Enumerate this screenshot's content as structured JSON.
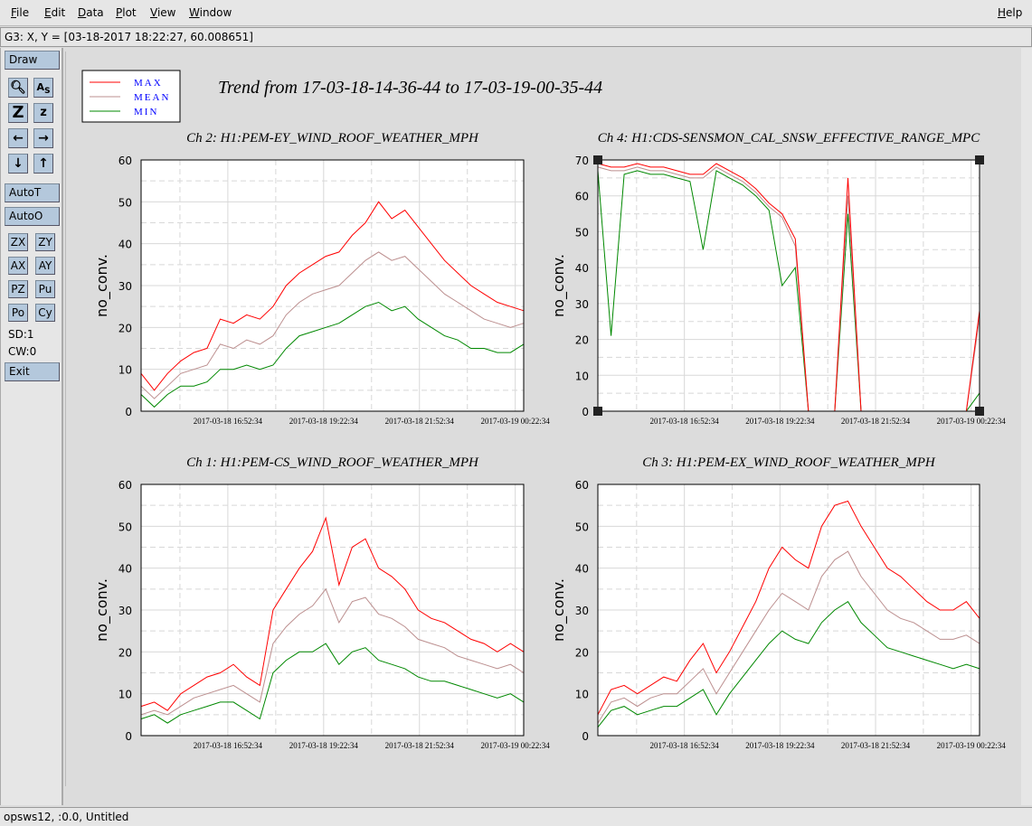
{
  "menu": {
    "items": [
      "File",
      "Edit",
      "Data",
      "Plot",
      "View",
      "Window"
    ],
    "help": "Help"
  },
  "coord_readout": "G3: X, Y = [03-18-2017 18:22:27, 60.008651]",
  "toolbar": {
    "draw": "Draw",
    "autot": "AutoT",
    "autoo": "AutoO",
    "zx": "ZX",
    "zy": "ZY",
    "ax": "AX",
    "ay": "AY",
    "pz": "PZ",
    "pu": "Pu",
    "po": "Po",
    "cy": "Cy",
    "sd": "SD:1",
    "cw": "CW:0",
    "exit": "Exit"
  },
  "status": "opsws12, :0.0, Untitled",
  "colors": {
    "max": "#ff0000",
    "mean": "#bc8f8f",
    "min": "#008800",
    "legend_text": "#0000ff"
  },
  "chart_data": {
    "type": "line",
    "title": "Trend from 17-03-18-14-36-44 to 17-03-19-00-35-44",
    "legend": {
      "placement": "top-left",
      "entries": [
        "MAX",
        "MEAN",
        "MIN"
      ]
    },
    "x_tick_labels": [
      "2017-03-18 16:52:34",
      "2017-03-18 19:22:34",
      "2017-03-18 21:52:34",
      "2017-03-19 00:22:34"
    ],
    "x_range_minutes": [
      0,
      599
    ],
    "x_tick_minutes": [
      135.8,
      285.8,
      435.8,
      585.8
    ],
    "charts": [
      {
        "title": "Ch 2: H1:PEM-EY_WIND_ROOF_WEATHER_MPH",
        "ylabel": "no_conv.",
        "ylim": [
          0,
          60
        ],
        "yticks": [
          "0",
          "10",
          "20",
          "30",
          "40",
          "50",
          "60"
        ],
        "series": [
          {
            "name": "MAX",
            "values": [
              9,
              5,
              9,
              12,
              14,
              15,
              22,
              21,
              23,
              22,
              25,
              30,
              33,
              35,
              37,
              38,
              42,
              45,
              50,
              46,
              48,
              44,
              40,
              36,
              33,
              30,
              28,
              26,
              25,
              24
            ]
          },
          {
            "name": "MEAN",
            "values": [
              6,
              3,
              6,
              9,
              10,
              11,
              16,
              15,
              17,
              16,
              18,
              23,
              26,
              28,
              29,
              30,
              33,
              36,
              38,
              36,
              37,
              34,
              31,
              28,
              26,
              24,
              22,
              21,
              20,
              21
            ]
          },
          {
            "name": "MIN",
            "values": [
              4,
              1,
              4,
              6,
              6,
              7,
              10,
              10,
              11,
              10,
              11,
              15,
              18,
              19,
              20,
              21,
              23,
              25,
              26,
              24,
              25,
              22,
              20,
              18,
              17,
              15,
              15,
              14,
              14,
              16
            ]
          }
        ]
      },
      {
        "title": "Ch 4: H1:CDS-SENSMON_CAL_SNSW_EFFECTIVE_RANGE_MPC",
        "ylabel": "no_conv.",
        "ylim": [
          0,
          70
        ],
        "yticks": [
          "0",
          "10",
          "20",
          "30",
          "40",
          "50",
          "60",
          "70"
        ],
        "series": [
          {
            "name": "MAX",
            "values": [
              69,
              68,
              68,
              69,
              68,
              68,
              67,
              66,
              66,
              69,
              67,
              65,
              62,
              58,
              55,
              48,
              0,
              0,
              0,
              65,
              0,
              0,
              0,
              0,
              0,
              0,
              0,
              0,
              0,
              28
            ]
          },
          {
            "name": "MEAN",
            "values": [
              68,
              67,
              67,
              68,
              67,
              67,
              66,
              65,
              65,
              68,
              66,
              64,
              61,
              57,
              54,
              46,
              0,
              0,
              0,
              60,
              0,
              0,
              0,
              0,
              0,
              0,
              0,
              0,
              0,
              26
            ]
          },
          {
            "name": "MIN",
            "values": [
              67,
              21,
              66,
              67,
              66,
              66,
              65,
              64,
              45,
              67,
              65,
              63,
              60,
              56,
              35,
              40,
              0,
              0,
              0,
              55,
              0,
              0,
              0,
              0,
              0,
              0,
              0,
              0,
              0,
              5
            ]
          }
        ]
      },
      {
        "title": "Ch 1: H1:PEM-CS_WIND_ROOF_WEATHER_MPH",
        "ylabel": "no_conv.",
        "ylim": [
          0,
          60
        ],
        "yticks": [
          "0",
          "10",
          "20",
          "30",
          "40",
          "50",
          "60"
        ],
        "series": [
          {
            "name": "MAX",
            "values": [
              7,
              8,
              6,
              10,
              12,
              14,
              15,
              17,
              14,
              12,
              30,
              35,
              40,
              44,
              52,
              36,
              45,
              47,
              40,
              38,
              35,
              30,
              28,
              27,
              25,
              23,
              22,
              20,
              22,
              20
            ]
          },
          {
            "name": "MEAN",
            "values": [
              5,
              6,
              5,
              7,
              9,
              10,
              11,
              12,
              10,
              8,
              22,
              26,
              29,
              31,
              35,
              27,
              32,
              33,
              29,
              28,
              26,
              23,
              22,
              21,
              19,
              18,
              17,
              16,
              17,
              15
            ]
          },
          {
            "name": "MIN",
            "values": [
              4,
              5,
              3,
              5,
              6,
              7,
              8,
              8,
              6,
              4,
              15,
              18,
              20,
              20,
              22,
              17,
              20,
              21,
              18,
              17,
              16,
              14,
              13,
              13,
              12,
              11,
              10,
              9,
              10,
              8
            ]
          }
        ]
      },
      {
        "title": "Ch 3: H1:PEM-EX_WIND_ROOF_WEATHER_MPH",
        "ylabel": "no_conv.",
        "ylim": [
          0,
          60
        ],
        "yticks": [
          "0",
          "10",
          "20",
          "30",
          "40",
          "50",
          "60"
        ],
        "series": [
          {
            "name": "MAX",
            "values": [
              5,
              11,
              12,
              10,
              12,
              14,
              13,
              18,
              22,
              15,
              20,
              26,
              32,
              40,
              45,
              42,
              40,
              50,
              55,
              56,
              50,
              45,
              40,
              38,
              35,
              32,
              30,
              30,
              32,
              28
            ]
          },
          {
            "name": "MEAN",
            "values": [
              3,
              8,
              9,
              7,
              9,
              10,
              10,
              13,
              16,
              10,
              15,
              20,
              25,
              30,
              34,
              32,
              30,
              38,
              42,
              44,
              38,
              34,
              30,
              28,
              27,
              25,
              23,
              23,
              24,
              22
            ]
          },
          {
            "name": "MIN",
            "values": [
              2,
              6,
              7,
              5,
              6,
              7,
              7,
              9,
              11,
              5,
              10,
              14,
              18,
              22,
              25,
              23,
              22,
              27,
              30,
              32,
              27,
              24,
              21,
              20,
              19,
              18,
              17,
              16,
              17,
              16
            ]
          }
        ]
      }
    ]
  }
}
